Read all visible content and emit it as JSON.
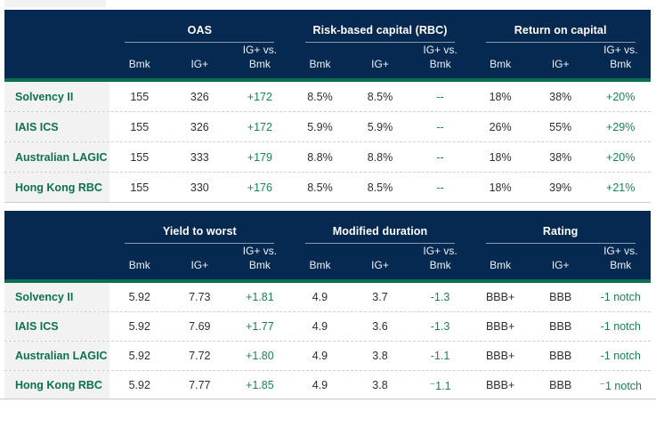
{
  "colors": {
    "header_navy": "#052950",
    "accent_green": "#0b6e51",
    "label_green": "#0e7150",
    "diff_green": "#1d8055",
    "row_label_bg": "#f2f2f2"
  },
  "subheaders": {
    "bmk": "Bmk",
    "ig": "IG+",
    "vs_line1": "IG+ vs.",
    "vs_line2": "Bmk"
  },
  "tables": [
    {
      "name": "capital-metrics-table",
      "groups": [
        {
          "title": "OAS"
        },
        {
          "title": "Risk-based capital (RBC)"
        },
        {
          "title": "Return on capital"
        }
      ],
      "rows": [
        {
          "label": "Solvency II",
          "values": [
            "155",
            "326",
            "+172",
            "8.5%",
            "8.5%",
            "--",
            "18%",
            "38%",
            "+20%"
          ]
        },
        {
          "label": "IAIS ICS",
          "values": [
            "155",
            "326",
            "+172",
            "5.9%",
            "5.9%",
            "--",
            "26%",
            "55%",
            "+29%"
          ]
        },
        {
          "label": "Australian LAGIC",
          "values": [
            "155",
            "333",
            "+179",
            "8.8%",
            "8.8%",
            "--",
            "18%",
            "38%",
            "+20%"
          ]
        },
        {
          "label": "Hong Kong RBC",
          "values": [
            "155",
            "330",
            "+176",
            "8.5%",
            "8.5%",
            "--",
            "18%",
            "39%",
            "+21%"
          ]
        }
      ]
    },
    {
      "name": "portfolio-metrics-table",
      "groups": [
        {
          "title": "Yield to worst"
        },
        {
          "title": "Modified duration"
        },
        {
          "title": "Rating"
        }
      ],
      "rows": [
        {
          "label": "Solvency II",
          "values": [
            "5.92",
            "7.73",
            "+1.81",
            "4.9",
            "3.7",
            "-1.3",
            "BBB+",
            "BBB",
            "-1 notch"
          ]
        },
        {
          "label": "IAIS ICS",
          "values": [
            "5.92",
            "7.69",
            "+1.77",
            "4.9",
            "3.6",
            "-1.3",
            "BBB+",
            "BBB",
            "-1 notch"
          ]
        },
        {
          "label": "Australian LAGIC",
          "values": [
            "5.92",
            "7.72",
            "+1.80",
            "4.9",
            "3.8",
            "-1.1",
            "BBB+",
            "BBB",
            "-1 notch"
          ]
        },
        {
          "label": "Hong Kong RBC",
          "values": [
            "5.92",
            "7.77",
            "+1.85",
            "4.9",
            "3.8",
            "⁻1.1",
            "BBB+",
            "BBB",
            "⁻1 notch"
          ]
        }
      ]
    }
  ]
}
